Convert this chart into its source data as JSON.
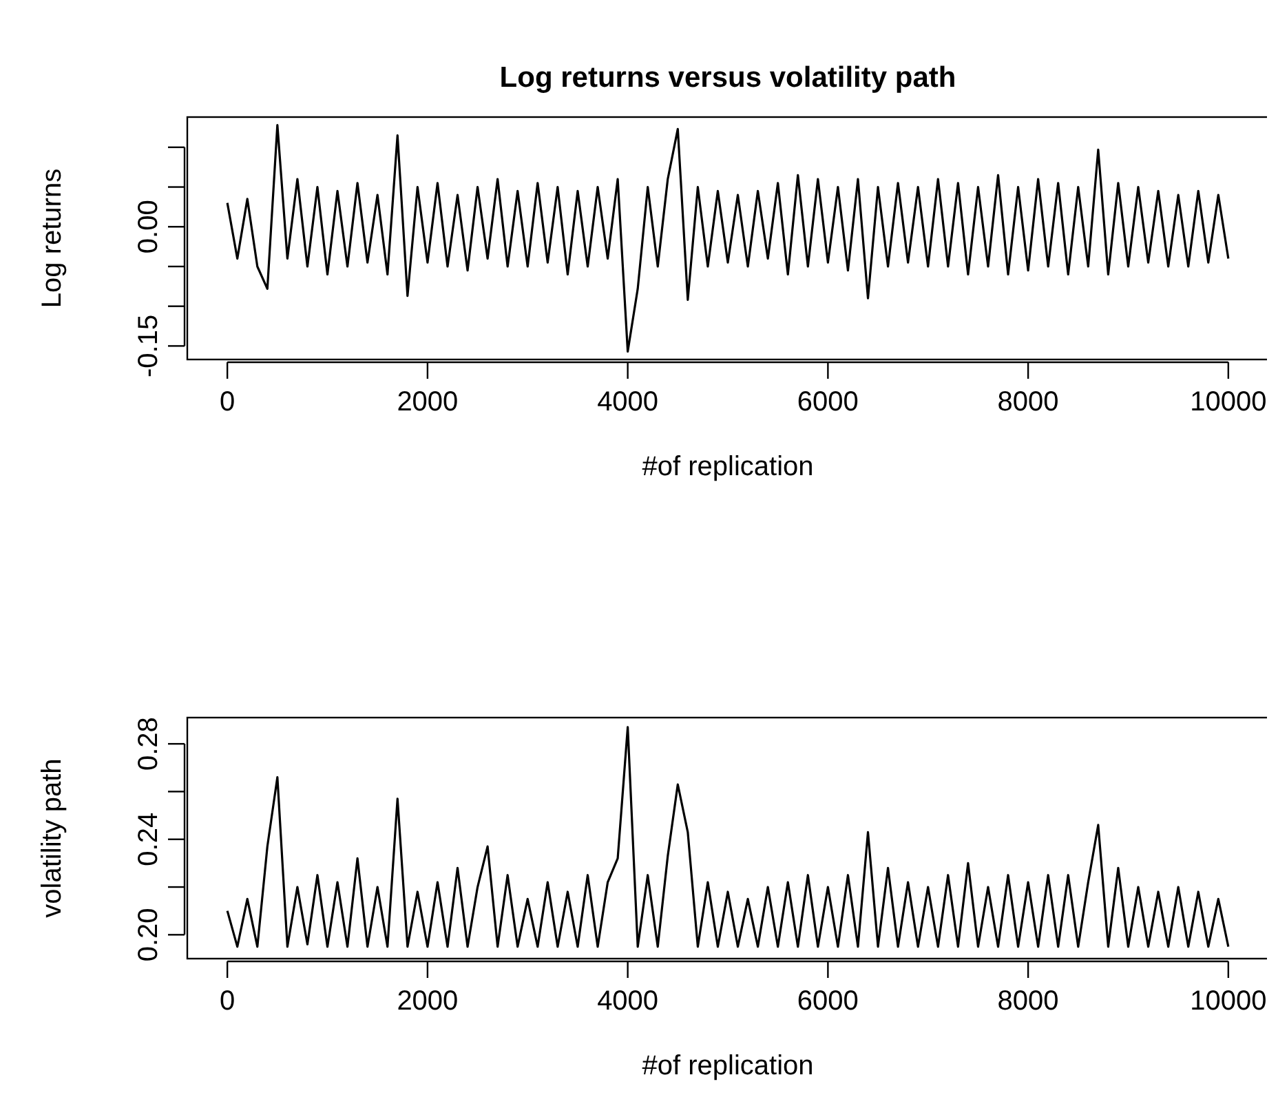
{
  "chart_data": [
    {
      "type": "line",
      "title": "Log returns versus volatility path",
      "xlabel": "#of replication",
      "ylabel": "Log returns",
      "color": "#000000",
      "line_style": "solid",
      "grid": false,
      "x": [
        0,
        100,
        200,
        300,
        400,
        500,
        600,
        700,
        800,
        900,
        1000,
        1100,
        1200,
        1300,
        1400,
        1500,
        1600,
        1700,
        1800,
        1900,
        2000,
        2100,
        2200,
        2300,
        2400,
        2500,
        2600,
        2700,
        2800,
        2900,
        3000,
        3100,
        3200,
        3300,
        3400,
        3500,
        3600,
        3700,
        3800,
        3900,
        4000,
        4100,
        4200,
        4300,
        4400,
        4500,
        4600,
        4700,
        4800,
        4900,
        5000,
        5100,
        5200,
        5300,
        5400,
        5500,
        5600,
        5700,
        5800,
        5900,
        6000,
        6100,
        6200,
        6300,
        6400,
        6500,
        6600,
        6700,
        6800,
        6900,
        7000,
        7100,
        7200,
        7300,
        7400,
        7500,
        7600,
        7700,
        7800,
        7900,
        8000,
        8100,
        8200,
        8300,
        8400,
        8500,
        8600,
        8700,
        8800,
        8900,
        9000,
        9100,
        9200,
        9300,
        9400,
        9500,
        9600,
        9700,
        9800,
        9900,
        10000
      ],
      "values": [
        0.03,
        -0.04,
        0.035,
        -0.05,
        -0.078,
        0.128,
        -0.04,
        0.06,
        -0.05,
        0.05,
        -0.06,
        0.045,
        -0.05,
        0.055,
        -0.045,
        0.04,
        -0.06,
        0.115,
        -0.087,
        0.05,
        -0.045,
        0.055,
        -0.05,
        0.04,
        -0.055,
        0.05,
        -0.04,
        0.06,
        -0.05,
        0.045,
        -0.05,
        0.055,
        -0.045,
        0.05,
        -0.06,
        0.045,
        -0.05,
        0.05,
        -0.04,
        0.06,
        -0.157,
        -0.078,
        0.05,
        -0.05,
        0.06,
        0.123,
        -0.092,
        0.05,
        -0.05,
        0.045,
        -0.045,
        0.04,
        -0.05,
        0.045,
        -0.04,
        0.055,
        -0.06,
        0.065,
        -0.05,
        0.06,
        -0.045,
        0.05,
        -0.055,
        0.06,
        -0.09,
        0.05,
        -0.05,
        0.055,
        -0.045,
        0.05,
        -0.05,
        0.06,
        -0.05,
        0.055,
        -0.06,
        0.05,
        -0.05,
        0.065,
        -0.06,
        0.05,
        -0.055,
        0.06,
        -0.05,
        0.055,
        -0.06,
        0.05,
        -0.05,
        0.097,
        -0.06,
        0.055,
        -0.05,
        0.05,
        -0.045,
        0.045,
        -0.05,
        0.04,
        -0.05,
        0.045,
        -0.045,
        0.04,
        -0.04
      ],
      "xlim": [
        -400,
        10400
      ],
      "xticks": [
        0,
        2000,
        4000,
        6000,
        8000,
        10000
      ],
      "ylim": [
        -0.167,
        0.138
      ],
      "yticks": [
        {
          "value": -0.15,
          "label": "-0.15"
        },
        {
          "value": -0.1,
          "label": null
        },
        {
          "value": -0.05,
          "label": null
        },
        {
          "value": 0,
          "label": "0.00"
        },
        {
          "value": 0.05,
          "label": null
        },
        {
          "value": 0.1,
          "label": null
        }
      ]
    },
    {
      "type": "line",
      "xlabel": "#of replication",
      "ylabel": "volatility path",
      "color": "#000000",
      "line_style": "solid",
      "grid": false,
      "x": [
        0,
        100,
        200,
        300,
        400,
        500,
        600,
        700,
        800,
        900,
        1000,
        1100,
        1200,
        1300,
        1400,
        1500,
        1600,
        1700,
        1800,
        1900,
        2000,
        2100,
        2200,
        2300,
        2400,
        2500,
        2600,
        2700,
        2800,
        2900,
        3000,
        3100,
        3200,
        3300,
        3400,
        3500,
        3600,
        3700,
        3800,
        3900,
        4000,
        4100,
        4200,
        4300,
        4400,
        4500,
        4600,
        4700,
        4800,
        4900,
        5000,
        5100,
        5200,
        5300,
        5400,
        5500,
        5600,
        5700,
        5800,
        5900,
        6000,
        6100,
        6200,
        6300,
        6400,
        6500,
        6600,
        6700,
        6800,
        6900,
        7000,
        7100,
        7200,
        7300,
        7400,
        7500,
        7600,
        7700,
        7800,
        7900,
        8000,
        8100,
        8200,
        8300,
        8400,
        8500,
        8600,
        8700,
        8800,
        8900,
        9000,
        9100,
        9200,
        9300,
        9400,
        9500,
        9600,
        9700,
        9800,
        9900,
        10000
      ],
      "values": [
        0.21,
        0.195,
        0.215,
        0.195,
        0.237,
        0.266,
        0.195,
        0.22,
        0.196,
        0.225,
        0.195,
        0.222,
        0.195,
        0.232,
        0.195,
        0.22,
        0.195,
        0.257,
        0.195,
        0.218,
        0.195,
        0.222,
        0.195,
        0.228,
        0.195,
        0.22,
        0.237,
        0.195,
        0.225,
        0.195,
        0.215,
        0.195,
        0.222,
        0.195,
        0.218,
        0.195,
        0.225,
        0.195,
        0.222,
        0.232,
        0.287,
        0.195,
        0.225,
        0.195,
        0.233,
        0.263,
        0.243,
        0.195,
        0.222,
        0.195,
        0.218,
        0.195,
        0.215,
        0.195,
        0.22,
        0.195,
        0.222,
        0.195,
        0.225,
        0.195,
        0.22,
        0.195,
        0.225,
        0.195,
        0.243,
        0.195,
        0.228,
        0.195,
        0.222,
        0.195,
        0.22,
        0.195,
        0.225,
        0.195,
        0.23,
        0.195,
        0.22,
        0.195,
        0.225,
        0.195,
        0.222,
        0.195,
        0.225,
        0.195,
        0.225,
        0.195,
        0.222,
        0.246,
        0.195,
        0.228,
        0.195,
        0.22,
        0.195,
        0.218,
        0.195,
        0.22,
        0.195,
        0.218,
        0.195,
        0.215,
        0.195
      ],
      "xlim": [
        -400,
        10400
      ],
      "xticks": [
        0,
        2000,
        4000,
        6000,
        8000,
        10000
      ],
      "ylim": [
        0.19,
        0.291
      ],
      "yticks": [
        {
          "value": 0.2,
          "label": "0.20"
        },
        {
          "value": 0.22,
          "label": null
        },
        {
          "value": 0.24,
          "label": "0.24"
        },
        {
          "value": 0.26,
          "label": null
        },
        {
          "value": 0.28,
          "label": "0.28"
        }
      ]
    }
  ]
}
